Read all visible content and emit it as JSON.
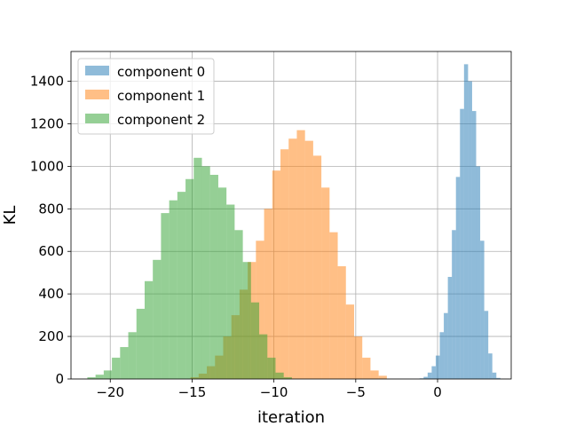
{
  "chart_data": {
    "type": "bar",
    "title": "",
    "xlabel": "iteration",
    "ylabel": "KL",
    "xlim": [
      -22.4,
      4.5
    ],
    "ylim": [
      0,
      1540
    ],
    "xticks": [
      -20,
      -15,
      -10,
      -5,
      0
    ],
    "yticks": [
      0,
      200,
      400,
      600,
      800,
      1000,
      1200,
      1400
    ],
    "grid": true,
    "legend_position": "top-left",
    "series": [
      {
        "name": "component 0",
        "color": "#1f77b4",
        "alpha": 0.5,
        "bin_width": 0.247,
        "bins": [
          [
            -1.1,
            3
          ],
          [
            -0.853,
            10
          ],
          [
            -0.606,
            30
          ],
          [
            -0.359,
            60
          ],
          [
            -0.112,
            110
          ],
          [
            0.135,
            220
          ],
          [
            0.382,
            310
          ],
          [
            0.629,
            480
          ],
          [
            0.876,
            700
          ],
          [
            1.123,
            950
          ],
          [
            1.37,
            1270
          ],
          [
            1.617,
            1480
          ],
          [
            1.864,
            1400
          ],
          [
            2.111,
            1260
          ],
          [
            2.358,
            1000
          ],
          [
            2.605,
            650
          ],
          [
            2.852,
            320
          ],
          [
            3.099,
            120
          ],
          [
            3.346,
            30
          ],
          [
            3.593,
            5
          ]
        ]
      },
      {
        "name": "component 1",
        "color": "#ff7f0e",
        "alpha": 0.5,
        "bin_width": 0.5,
        "bins": [
          [
            -15.1,
            8
          ],
          [
            -14.6,
            25
          ],
          [
            -14.1,
            60
          ],
          [
            -13.6,
            110
          ],
          [
            -13.1,
            200
          ],
          [
            -12.6,
            300
          ],
          [
            -12.1,
            420
          ],
          [
            -11.6,
            550
          ],
          [
            -11.1,
            650
          ],
          [
            -10.6,
            800
          ],
          [
            -10.1,
            980
          ],
          [
            -9.6,
            1080
          ],
          [
            -9.1,
            1130
          ],
          [
            -8.6,
            1170
          ],
          [
            -8.1,
            1120
          ],
          [
            -7.6,
            1050
          ],
          [
            -7.1,
            900
          ],
          [
            -6.6,
            690
          ],
          [
            -6.1,
            530
          ],
          [
            -5.6,
            350
          ],
          [
            -5.1,
            200
          ],
          [
            -4.6,
            100
          ],
          [
            -4.1,
            40
          ],
          [
            -3.6,
            15
          ]
        ]
      },
      {
        "name": "component 2",
        "color": "#2ca02c",
        "alpha": 0.5,
        "bin_width": 0.5,
        "bins": [
          [
            -21.4,
            8
          ],
          [
            -20.9,
            20
          ],
          [
            -20.4,
            40
          ],
          [
            -19.9,
            100
          ],
          [
            -19.4,
            150
          ],
          [
            -18.9,
            220
          ],
          [
            -18.4,
            330
          ],
          [
            -17.9,
            460
          ],
          [
            -17.4,
            560
          ],
          [
            -16.9,
            780
          ],
          [
            -16.4,
            840
          ],
          [
            -15.9,
            880
          ],
          [
            -15.4,
            940
          ],
          [
            -14.9,
            1040
          ],
          [
            -14.4,
            1000
          ],
          [
            -13.9,
            960
          ],
          [
            -13.4,
            900
          ],
          [
            -12.9,
            820
          ],
          [
            -12.4,
            700
          ],
          [
            -11.9,
            550
          ],
          [
            -11.4,
            360
          ],
          [
            -10.9,
            210
          ],
          [
            -10.4,
            100
          ],
          [
            -9.9,
            30
          ],
          [
            -9.4,
            8
          ]
        ]
      }
    ]
  }
}
